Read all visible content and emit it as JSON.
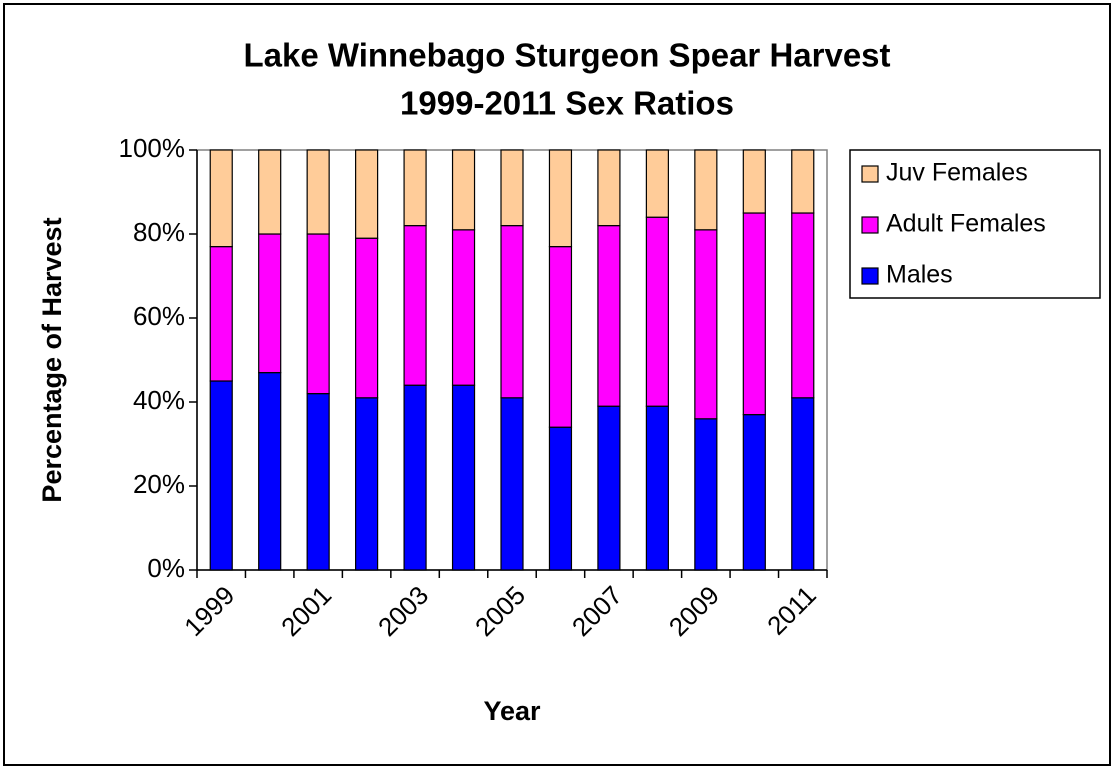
{
  "chart_data": {
    "type": "stacked_bar",
    "title": "Lake Winnebago Sturgeon Spear Harvest",
    "subtitle": "1999-2011 Sex Ratios",
    "x_label": "Year",
    "y_label": "Percentage of Harvest",
    "categories": [
      "1999",
      null,
      "2001",
      null,
      "2003",
      null,
      "2005",
      null,
      "2007",
      null,
      "2009",
      null,
      "2011"
    ],
    "series": [
      {
        "name": "Males",
        "color": "#0000ff",
        "values": [
          45,
          47,
          42,
          41,
          44,
          44,
          41,
          34,
          39,
          39,
          36,
          37,
          41
        ]
      },
      {
        "name": "Adult Females",
        "color": "#ff00ff",
        "values": [
          32,
          33,
          38,
          38,
          38,
          37,
          41,
          43,
          43,
          45,
          45,
          48,
          44
        ]
      },
      {
        "name": "Juv Females",
        "color": "#ffcc99",
        "values": [
          23,
          20,
          20,
          21,
          18,
          19,
          18,
          23,
          18,
          16,
          19,
          15,
          15
        ]
      }
    ],
    "ylim": [
      0,
      100
    ],
    "yticks": [
      {
        "value": 0,
        "label": "0%"
      },
      {
        "value": 20,
        "label": "20%"
      },
      {
        "value": 40,
        "label": "40%"
      },
      {
        "value": 60,
        "label": "60%"
      },
      {
        "value": 80,
        "label": "80%"
      },
      {
        "value": 100,
        "label": "100%"
      }
    ],
    "legend": "right"
  }
}
